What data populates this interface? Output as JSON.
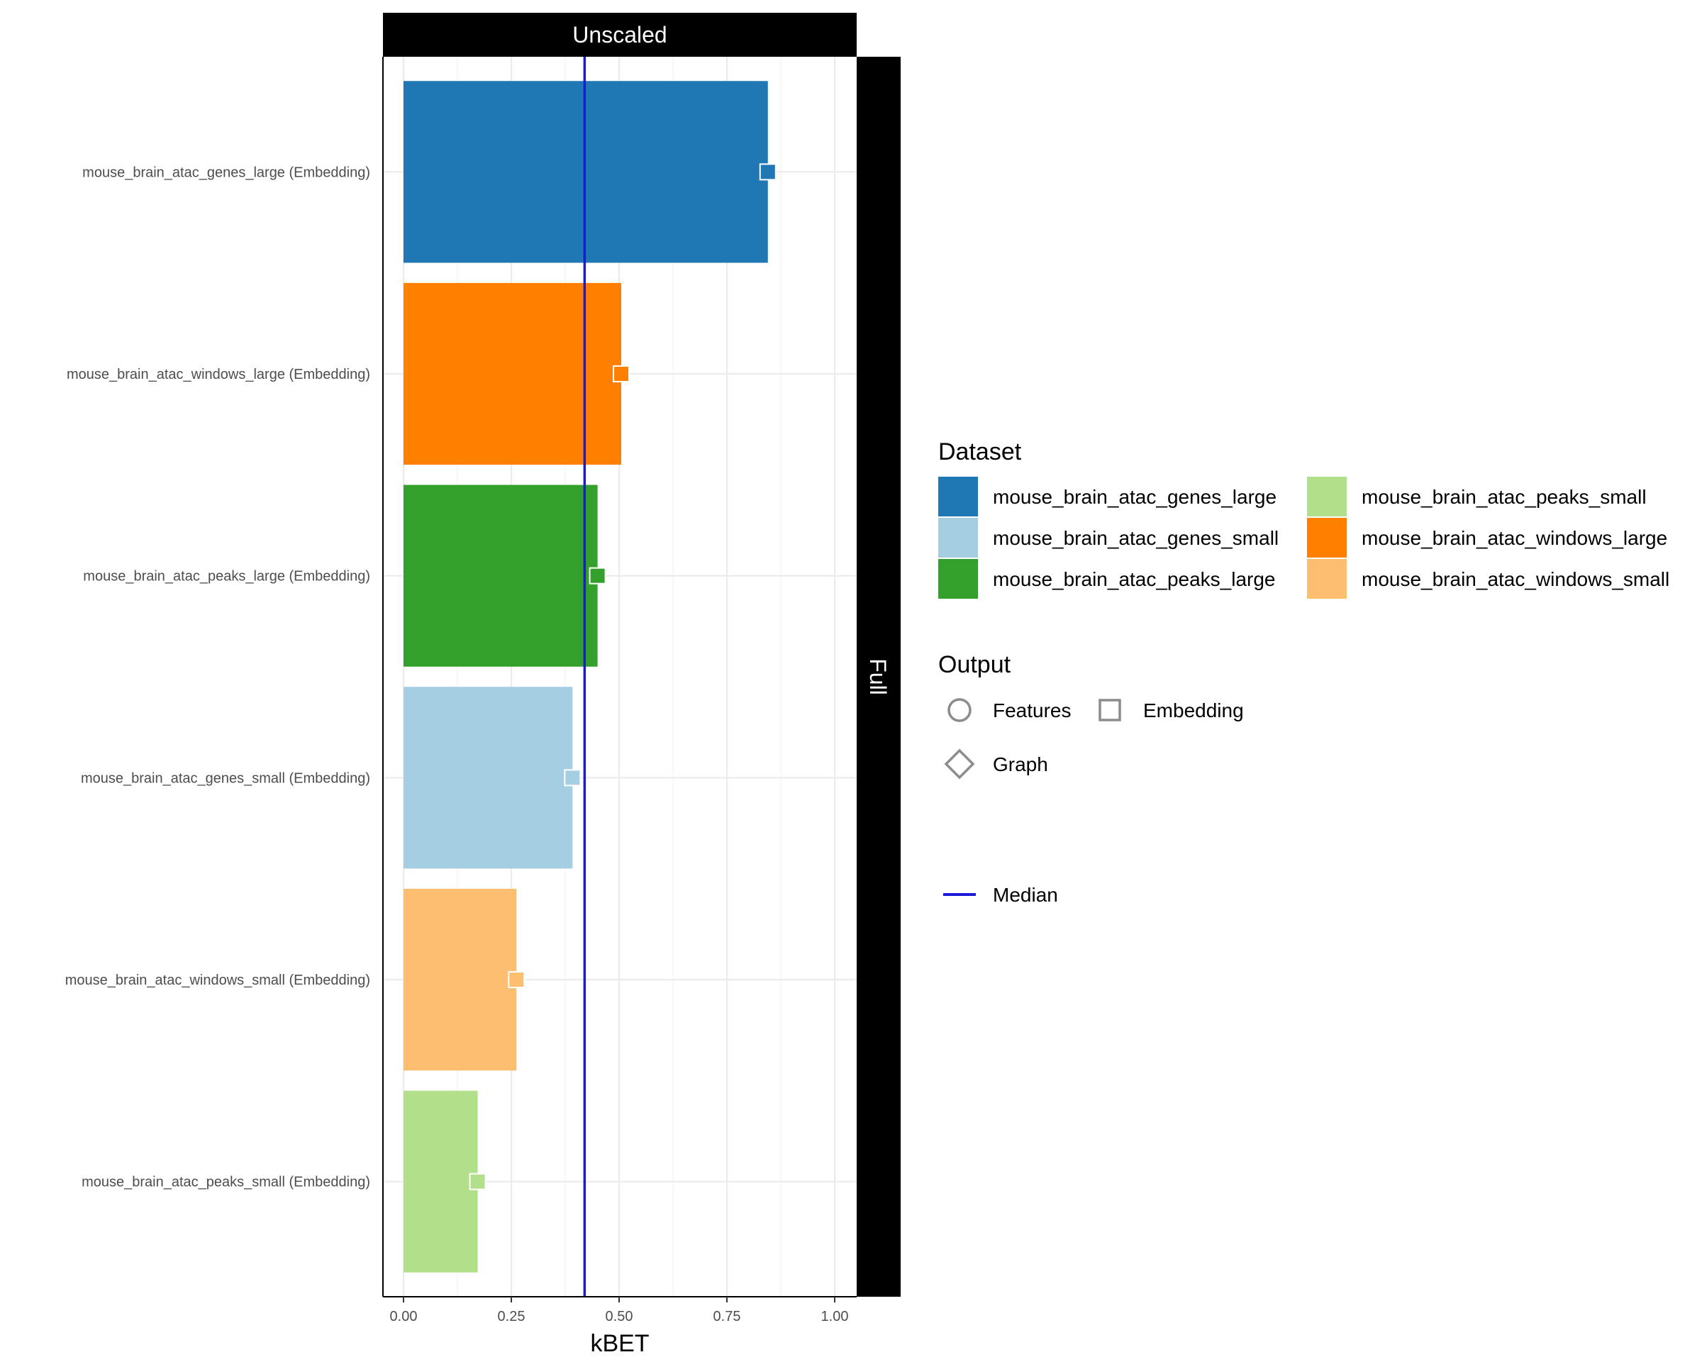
{
  "chart_data": {
    "type": "bar",
    "orientation": "horizontal",
    "facet_top": "Unscaled",
    "facet_right": "Full",
    "xlabel": "kBET",
    "ylabel": "",
    "xlim": [
      0,
      1.05
    ],
    "x_ticks": [
      0.0,
      0.25,
      0.5,
      0.75,
      1.0
    ],
    "x_tick_labels": [
      "0.00",
      "0.25",
      "0.50",
      "0.75",
      "1.00"
    ],
    "grid": true,
    "median": 0.42,
    "bars": [
      {
        "label": "mouse_brain_atac_genes_large (Embedding)",
        "dataset": "mouse_brain_atac_genes_large",
        "output": "Embedding",
        "value": 0.845,
        "color": "#1f78b4"
      },
      {
        "label": "mouse_brain_atac_windows_large (Embedding)",
        "dataset": "mouse_brain_atac_windows_large",
        "output": "Embedding",
        "value": 0.505,
        "color": "#ff7f00"
      },
      {
        "label": "mouse_brain_atac_peaks_large (Embedding)",
        "dataset": "mouse_brain_atac_peaks_large",
        "output": "Embedding",
        "value": 0.45,
        "color": "#33a02c"
      },
      {
        "label": "mouse_brain_atac_genes_small (Embedding)",
        "dataset": "mouse_brain_atac_genes_small",
        "output": "Embedding",
        "value": 0.392,
        "color": "#a6cee3"
      },
      {
        "label": "mouse_brain_atac_windows_small (Embedding)",
        "dataset": "mouse_brain_atac_windows_small",
        "output": "Embedding",
        "value": 0.262,
        "color": "#fdbf6f"
      },
      {
        "label": "mouse_brain_atac_peaks_small (Embedding)",
        "dataset": "mouse_brain_atac_peaks_small",
        "output": "Embedding",
        "value": 0.172,
        "color": "#b2df8a"
      }
    ],
    "legend": {
      "placement": "right",
      "dataset_title": "Dataset",
      "datasets": [
        {
          "name": "mouse_brain_atac_genes_large",
          "color": "#1f78b4"
        },
        {
          "name": "mouse_brain_atac_genes_small",
          "color": "#a6cee3"
        },
        {
          "name": "mouse_brain_atac_peaks_large",
          "color": "#33a02c"
        },
        {
          "name": "mouse_brain_atac_peaks_small",
          "color": "#b2df8a"
        },
        {
          "name": "mouse_brain_atac_windows_large",
          "color": "#ff7f00"
        },
        {
          "name": "mouse_brain_atac_windows_small",
          "color": "#fdbf6f"
        }
      ],
      "output_title": "Output",
      "outputs": [
        {
          "name": "Features",
          "shape": "circle-icon"
        },
        {
          "name": "Embedding",
          "shape": "square-icon"
        },
        {
          "name": "Graph",
          "shape": "diamond-icon"
        }
      ],
      "median_label": "Median",
      "median_color": "#1a1adb"
    }
  }
}
